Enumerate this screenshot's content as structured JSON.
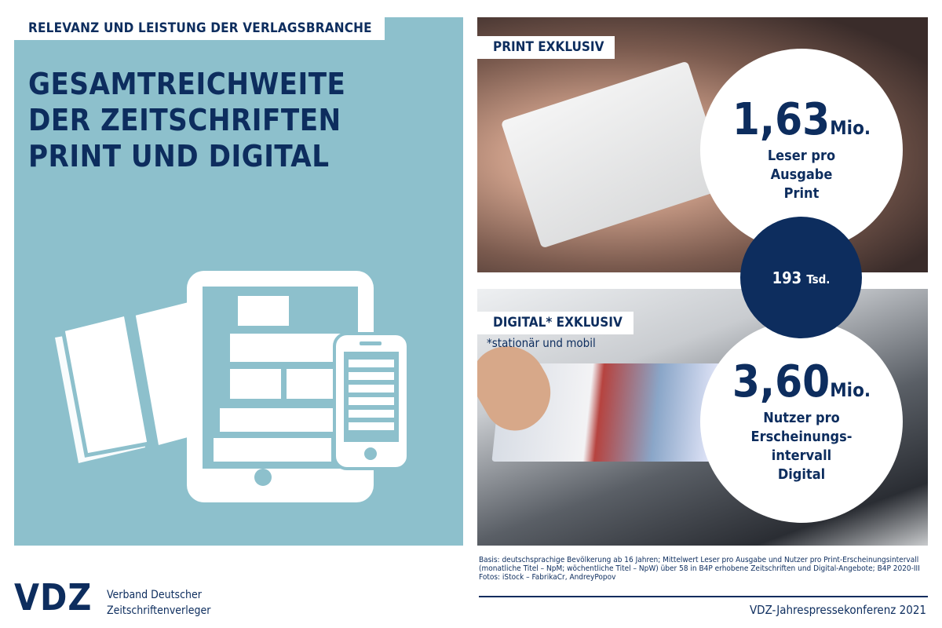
{
  "kicker": "RELEVANZ UND LEISTUNG DER VERLAGSBRANCHE",
  "title": [
    "GESAMTREICHWEITE",
    "DER ZEITSCHRIFTEN",
    "PRINT UND DIGITAL"
  ],
  "print": {
    "label": "PRINT EXKLUSIV",
    "value": "1,63",
    "unit": "Mio.",
    "desc": [
      "Leser pro",
      "Ausgabe",
      "Print"
    ]
  },
  "overlap": {
    "value": "193",
    "unit": "Tsd."
  },
  "digital": {
    "label": "DIGITAL* EXKLUSIV",
    "note": "*stationär und mobil",
    "value": "3,60",
    "unit": "Mio.",
    "desc": [
      "Nutzer pro",
      "Erscheinungs-",
      "intervall",
      "Digital"
    ]
  },
  "footnote": [
    "Basis: deutschsprachige Bevölkerung ab 16 Jahren; Mittelwert Leser pro Ausgabe und Nutzer pro Print-Erscheinungsintervall",
    "(monatliche Titel – NpM; wöchentliche Titel – NpW) über 58 in B4P erhobene Zeitschriften und Digital-Angebote; B4P 2020-III",
    "Fotos: iStock – FabrikaCr, AndreyPopov"
  ],
  "conference": "VDZ-Jahrespressekonferenz 2021",
  "logo": {
    "text": "VDZ",
    "org": [
      "Verband Deutscher",
      "Zeitschriftenverleger"
    ]
  },
  "colors": {
    "navy": "#0d2d5e",
    "teal": "#8dc0cc"
  }
}
